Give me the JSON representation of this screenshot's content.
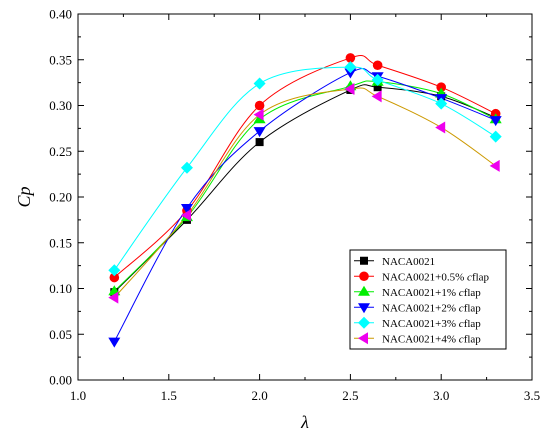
{
  "chart_data": {
    "type": "line",
    "title": "",
    "xlabel": "λ",
    "ylabel": "Cp",
    "xlim": [
      1.0,
      3.5
    ],
    "ylim": [
      0.0,
      0.4
    ],
    "xticks": [
      "1.0",
      "1.5",
      "2.0",
      "2.5",
      "3.0",
      "3.5"
    ],
    "yticks": [
      "0.00",
      "0.05",
      "0.10",
      "0.15",
      "0.20",
      "0.25",
      "0.30",
      "0.35",
      "0.40"
    ],
    "xtick_values": [
      1.0,
      1.5,
      2.0,
      2.5,
      3.0,
      3.5
    ],
    "ytick_values": [
      0.0,
      0.05,
      0.1,
      0.15,
      0.2,
      0.25,
      0.3,
      0.35,
      0.4
    ],
    "grid": false,
    "legend_position": "bottom-right",
    "series": [
      {
        "name": "NACA0021",
        "legend_parts": [
          "NACA0021",
          ""
        ],
        "color": "#000000",
        "marker": "square",
        "x": [
          1.2,
          1.6,
          2.0,
          2.5,
          2.65,
          3.0,
          3.3
        ],
        "y": [
          0.096,
          0.175,
          0.26,
          0.317,
          0.32,
          0.31,
          0.287
        ]
      },
      {
        "name": "NACA0021+0.5% cflap",
        "legend_parts": [
          "NACA0021+0.5% ",
          "c",
          "flap"
        ],
        "color": "#ff0000",
        "marker": "circle",
        "x": [
          1.2,
          1.6,
          2.0,
          2.5,
          2.65,
          3.0,
          3.3
        ],
        "y": [
          0.112,
          0.185,
          0.3,
          0.352,
          0.344,
          0.32,
          0.291
        ]
      },
      {
        "name": "NACA0021+1% cflap",
        "legend_parts": [
          "NACA0021+1% ",
          "c",
          "flap"
        ],
        "color": "#00ee00",
        "marker": "triangle-up",
        "x": [
          1.2,
          1.6,
          2.0,
          2.5,
          2.65,
          3.0,
          3.3
        ],
        "y": [
          0.097,
          0.178,
          0.285,
          0.321,
          0.326,
          0.313,
          0.285
        ]
      },
      {
        "name": "NACA0021+2% cflap",
        "legend_parts": [
          "NACA0021+2% ",
          "c",
          "flap"
        ],
        "color": "#0000ff",
        "marker": "triangle-down",
        "x": [
          1.2,
          1.6,
          2.0,
          2.5,
          2.65,
          3.0,
          3.3
        ],
        "y": [
          0.042,
          0.188,
          0.272,
          0.336,
          0.332,
          0.308,
          0.284
        ]
      },
      {
        "name": "NACA0021+3% cflap",
        "legend_parts": [
          "NACA0021+3% ",
          "c",
          "flap"
        ],
        "color": "#00ffff",
        "marker": "diamond",
        "x": [
          1.2,
          1.6,
          2.0,
          2.5,
          2.65,
          3.0,
          3.3
        ],
        "y": [
          0.12,
          0.232,
          0.324,
          0.342,
          0.328,
          0.302,
          0.266
        ]
      },
      {
        "name": "NACA0021+4% cflap",
        "legend_parts": [
          "NACA0021+4% ",
          "c",
          "flap"
        ],
        "color": "#ee00ee",
        "marker": "triangle-left",
        "curve_color": "#cc9900",
        "x": [
          1.2,
          1.6,
          2.0,
          2.5,
          2.65,
          3.0,
          3.3
        ],
        "y": [
          0.09,
          0.18,
          0.29,
          0.318,
          0.31,
          0.276,
          0.234
        ]
      }
    ]
  }
}
